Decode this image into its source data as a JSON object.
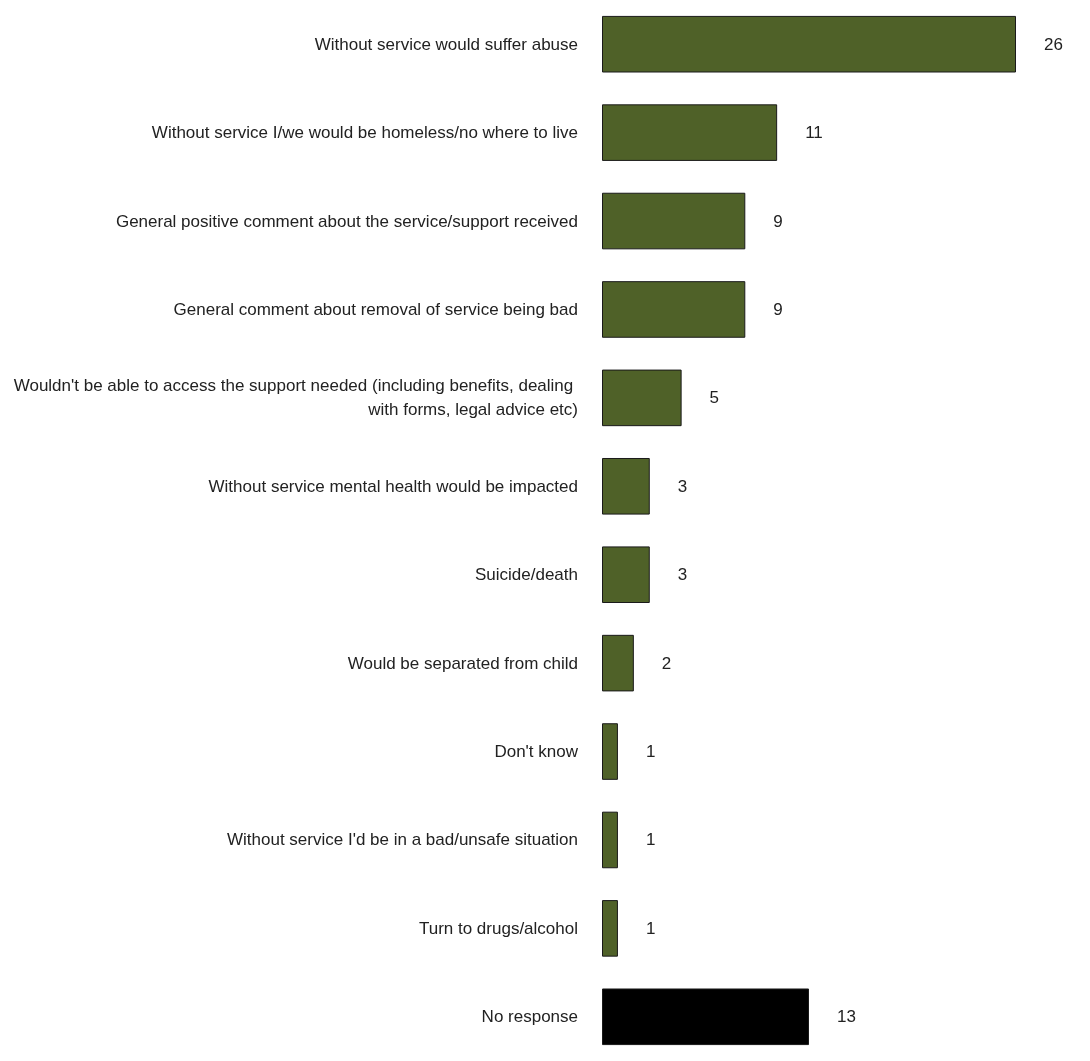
{
  "chart_data": {
    "type": "bar",
    "orientation": "horizontal",
    "data_labels": true,
    "categories": [
      "Without service would suffer abuse",
      "Without service I/we would be homeless/no where to live",
      "General positive comment about the service/support received",
      "General comment about removal of service being bad",
      "Wouldn't be able to access the support needed (including benefits, dealing with forms, legal advice etc)",
      "Without service mental health would be impacted",
      "Suicide/death",
      "Would be separated from child",
      "Don't know",
      "Without service I'd be in a bad/unsafe situation",
      "Turn to drugs/alcohol",
      "No response"
    ],
    "values": [
      26,
      11,
      9,
      9,
      5,
      3,
      3,
      2,
      1,
      1,
      1,
      13
    ],
    "colors": [
      "#4f6128",
      "#4f6128",
      "#4f6128",
      "#4f6128",
      "#4f6128",
      "#4f6128",
      "#4f6128",
      "#4f6128",
      "#4f6128",
      "#4f6128",
      "#4f6128",
      "#000000"
    ]
  }
}
